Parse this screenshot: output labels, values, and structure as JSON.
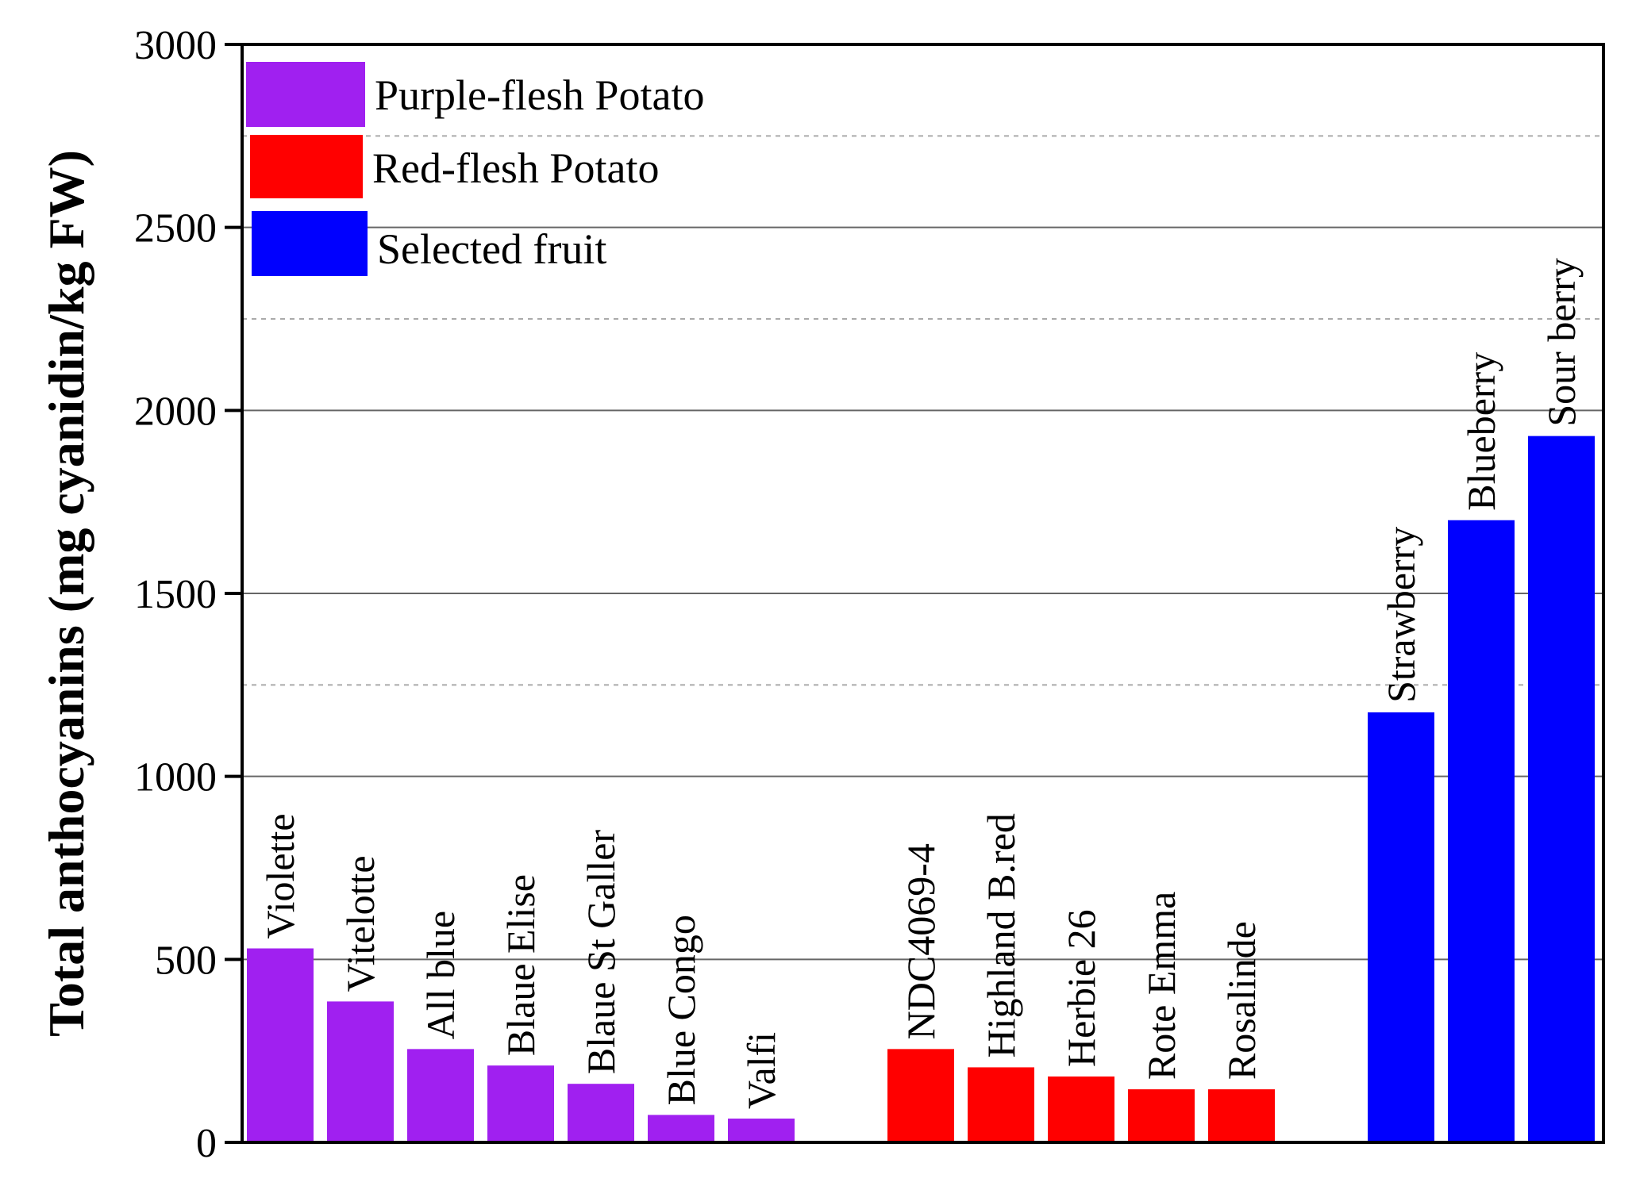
{
  "chart_data": {
    "type": "bar",
    "title": "",
    "xlabel": "",
    "ylabel": "Total anthocyanins (mg cyanidin/kg FW)",
    "ylim": [
      0,
      3000
    ],
    "yticks": [
      "0",
      "500",
      "1000",
      "1500",
      "2000",
      "2500",
      "3000"
    ],
    "yticks_values": [
      0,
      500,
      1000,
      1500,
      2000,
      2500,
      3000
    ],
    "minor_grid_values": [
      1250,
      2250,
      2750
    ],
    "grid": true,
    "legend_position": "top-left",
    "series": [
      {
        "name": "Purple-flesh Potato",
        "color": "#a020f0",
        "categories": [
          "Violette",
          "Vitelotte",
          "All blue",
          "Blaue Elise",
          "Blaue St Galler",
          "Blue Congo",
          "Valfi"
        ],
        "values": [
          530,
          385,
          255,
          210,
          160,
          75,
          65
        ]
      },
      {
        "name": "Red-flesh Potato",
        "color": "#ff0000",
        "categories": [
          "NDC4069-4",
          "Highland B.red",
          "Herbie 26",
          "Rote Emma",
          "Rosalinde"
        ],
        "values": [
          255,
          205,
          180,
          145,
          145
        ]
      },
      {
        "name": "Selected fruit",
        "color": "#0000ff",
        "categories": [
          "Strawberry",
          "Blueberry",
          "Sour berry"
        ],
        "values": [
          1175,
          1700,
          1930
        ]
      }
    ]
  }
}
